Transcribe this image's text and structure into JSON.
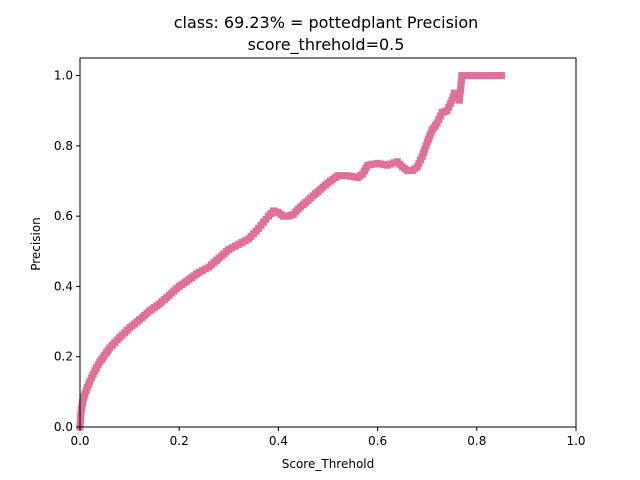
{
  "chart_data": {
    "type": "line",
    "title_line1": "class: 69.23% = pottedplant Precision",
    "title_line2": "score_threhold=0.5",
    "xlabel": "Score_Threhold",
    "ylabel": "Precision",
    "xlim": [
      0,
      1
    ],
    "ylim": [
      0,
      1.05
    ],
    "xticks": [
      "0.0",
      "0.2",
      "0.4",
      "0.6",
      "0.8",
      "1.0"
    ],
    "yticks": [
      "0.0",
      "0.2",
      "0.4",
      "0.6",
      "0.8",
      "1.0"
    ],
    "grid": false,
    "series": [
      {
        "color": "#e07098",
        "marker": "square",
        "points": [
          [
            0.0,
            0.0
          ],
          [
            0.002,
            0.04
          ],
          [
            0.005,
            0.07
          ],
          [
            0.01,
            0.095
          ],
          [
            0.02,
            0.13
          ],
          [
            0.03,
            0.16
          ],
          [
            0.04,
            0.185
          ],
          [
            0.05,
            0.205
          ],
          [
            0.06,
            0.225
          ],
          [
            0.07,
            0.24
          ],
          [
            0.08,
            0.255
          ],
          [
            0.09,
            0.268
          ],
          [
            0.1,
            0.282
          ],
          [
            0.12,
            0.305
          ],
          [
            0.14,
            0.33
          ],
          [
            0.16,
            0.35
          ],
          [
            0.18,
            0.375
          ],
          [
            0.2,
            0.4
          ],
          [
            0.22,
            0.42
          ],
          [
            0.24,
            0.44
          ],
          [
            0.26,
            0.455
          ],
          [
            0.28,
            0.48
          ],
          [
            0.3,
            0.505
          ],
          [
            0.32,
            0.52
          ],
          [
            0.34,
            0.535
          ],
          [
            0.36,
            0.565
          ],
          [
            0.38,
            0.6
          ],
          [
            0.39,
            0.615
          ],
          [
            0.4,
            0.61
          ],
          [
            0.41,
            0.6
          ],
          [
            0.42,
            0.6
          ],
          [
            0.43,
            0.605
          ],
          [
            0.44,
            0.62
          ],
          [
            0.46,
            0.645
          ],
          [
            0.48,
            0.67
          ],
          [
            0.5,
            0.695
          ],
          [
            0.52,
            0.715
          ],
          [
            0.54,
            0.715
          ],
          [
            0.56,
            0.71
          ],
          [
            0.57,
            0.72
          ],
          [
            0.58,
            0.745
          ],
          [
            0.6,
            0.75
          ],
          [
            0.62,
            0.745
          ],
          [
            0.64,
            0.755
          ],
          [
            0.65,
            0.74
          ],
          [
            0.66,
            0.73
          ],
          [
            0.67,
            0.73
          ],
          [
            0.68,
            0.74
          ],
          [
            0.69,
            0.77
          ],
          [
            0.7,
            0.81
          ],
          [
            0.71,
            0.845
          ],
          [
            0.72,
            0.865
          ],
          [
            0.73,
            0.895
          ],
          [
            0.74,
            0.9
          ],
          [
            0.75,
            0.93
          ],
          [
            0.755,
            0.95
          ],
          [
            0.76,
            0.945
          ],
          [
            0.765,
            0.93
          ],
          [
            0.77,
            1.0
          ],
          [
            0.8,
            1.0
          ],
          [
            0.83,
            1.0
          ],
          [
            0.85,
            1.0
          ]
        ]
      }
    ]
  }
}
